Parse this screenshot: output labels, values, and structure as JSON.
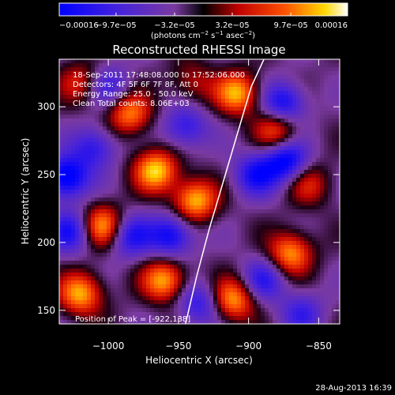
{
  "chart_data": {
    "type": "heatmap",
    "title": "Reconstructed RHESSI Image",
    "xlabel": "Heliocentric X (arcsec)",
    "ylabel": "Heliocentric Y (arcsec)",
    "xlim": [
      -1035,
      -835
    ],
    "ylim": [
      140,
      335
    ],
    "xticks": [
      -1000,
      -950,
      -900,
      -850
    ],
    "xtick_labels": [
      "−1000",
      "−950",
      "−900",
      "−850"
    ],
    "yticks": [
      150,
      200,
      250,
      300
    ],
    "ytick_labels": [
      "150",
      "200",
      "250",
      "300"
    ],
    "colorbar": {
      "range": [
        -0.00016,
        0.00016
      ],
      "ticks": [
        -0.00016,
        -9.7e-05,
        -3.2e-05,
        3.2e-05,
        9.7e-05,
        0.00016
      ],
      "tick_labels": [
        "−0.00016",
        "−9.7e−05",
        "−3.2e−05",
        "3.2e−05",
        "9.7e−05",
        "0.00016"
      ],
      "units_label": "(photons cm",
      "units_sup1": "−2",
      "units_mid": " s",
      "units_sup2": "−1",
      "units_end": " asec",
      "units_sup3": "−2",
      "units_close": ")"
    },
    "annotations": [
      "18-Sep-2011 17:48:08.000 to 17:52:06.000",
      "Detectors: 4F 5F 6F 7F 8F, Att 0",
      "Energy Range: 25.0 - 50.0 keV",
      "Clean     Total counts: 8.06E+03"
    ],
    "peak_label": "Position of Peak = [-922,138]",
    "limb_curve": {
      "x": [
        -945,
        -937,
        -928,
        -918,
        -908,
        -898,
        -889
      ],
      "y": [
        140,
        175,
        210,
        245,
        280,
        315,
        335
      ]
    },
    "intensity_maxima": [
      {
        "x": -1030,
        "y": 248,
        "v": -1.0
      },
      {
        "x": -966,
        "y": 253,
        "v": 1.0
      },
      {
        "x": -1004,
        "y": 212,
        "v": 0.9
      },
      {
        "x": -985,
        "y": 295,
        "v": 0.8
      },
      {
        "x": -1020,
        "y": 162,
        "v": 0.9
      },
      {
        "x": -960,
        "y": 172,
        "v": 0.9
      },
      {
        "x": -938,
        "y": 231,
        "v": 0.95
      },
      {
        "x": -908,
        "y": 310,
        "v": 0.9
      },
      {
        "x": -880,
        "y": 283,
        "v": 0.7
      },
      {
        "x": -870,
        "y": 192,
        "v": 0.85
      },
      {
        "x": -911,
        "y": 158,
        "v": 0.9
      },
      {
        "x": -857,
        "y": 243,
        "v": 0.5
      },
      {
        "x": -1027,
        "y": 208,
        "v": -0.7
      },
      {
        "x": -945,
        "y": 285,
        "v": -0.6
      },
      {
        "x": -985,
        "y": 205,
        "v": -0.7
      },
      {
        "x": -955,
        "y": 205,
        "v": -0.8
      },
      {
        "x": -1010,
        "y": 270,
        "v": -0.6
      },
      {
        "x": -895,
        "y": 250,
        "v": -0.7
      },
      {
        "x": -875,
        "y": 302,
        "v": -0.8
      },
      {
        "x": -873,
        "y": 260,
        "v": -0.9
      },
      {
        "x": -890,
        "y": 172,
        "v": -0.6
      },
      {
        "x": -1000,
        "y": 315,
        "v": -0.5
      },
      {
        "x": -935,
        "y": 155,
        "v": -0.6
      },
      {
        "x": -862,
        "y": 148,
        "v": -0.5
      },
      {
        "x": -1020,
        "y": 318,
        "v": 0.5
      },
      {
        "x": -940,
        "y": 318,
        "v": 0.4
      }
    ]
  },
  "footer": {
    "timestamp": "28-Aug-2013 16:39"
  },
  "colors": {
    "background": "#000000",
    "text": "#ffffff",
    "limb": "#ffffff"
  }
}
